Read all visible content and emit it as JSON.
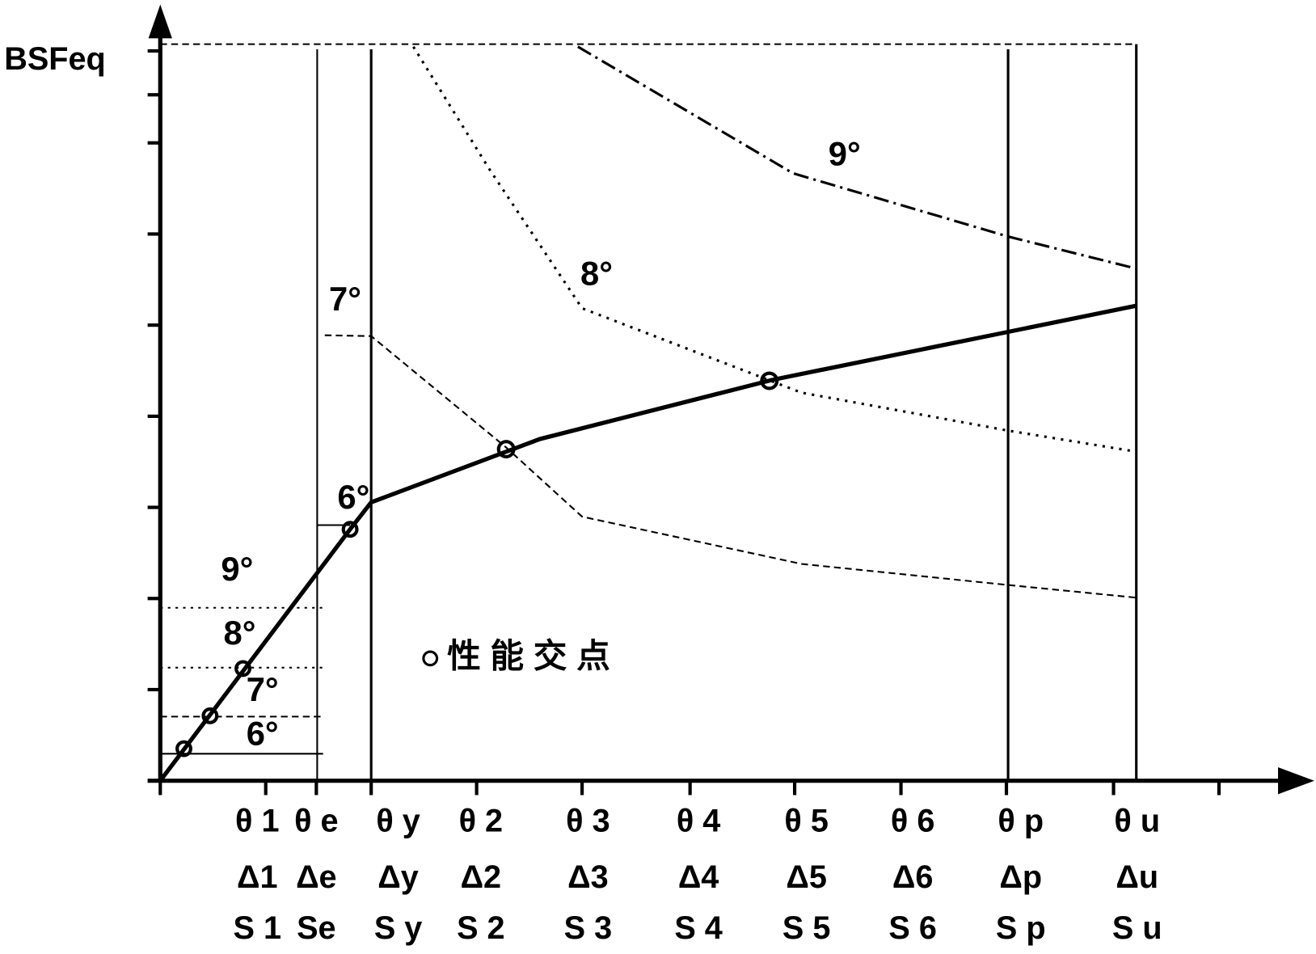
{
  "y_axis_label": "BSFeq",
  "curve_labels": [
    "9°",
    "8°",
    "7°",
    "6°"
  ],
  "lower_labels": [
    "9°",
    "8°",
    "7°",
    "6°"
  ],
  "legend": "性 能 交 点",
  "x_labels": [
    {
      "theta": "θ 1",
      "delta": "Δ1",
      "s": "S 1"
    },
    {
      "theta": "θ e",
      "delta": "Δe",
      "s": "Se"
    },
    {
      "theta": "θ y",
      "delta": "Δy",
      "s": "S y"
    },
    {
      "theta": "θ 2",
      "delta": "Δ2",
      "s": "S 2"
    },
    {
      "theta": "θ 3",
      "delta": "Δ3",
      "s": "S 3"
    },
    {
      "theta": "θ 4",
      "delta": "Δ4",
      "s": "S 4"
    },
    {
      "theta": "θ 5",
      "delta": "Δ5",
      "s": "S 5"
    },
    {
      "theta": "θ 6",
      "delta": "Δ6",
      "s": "S 6"
    },
    {
      "theta": "θ p",
      "delta": "Δp",
      "s": "S p"
    },
    {
      "theta": "θ u",
      "delta": "Δu",
      "s": "S u"
    }
  ]
}
